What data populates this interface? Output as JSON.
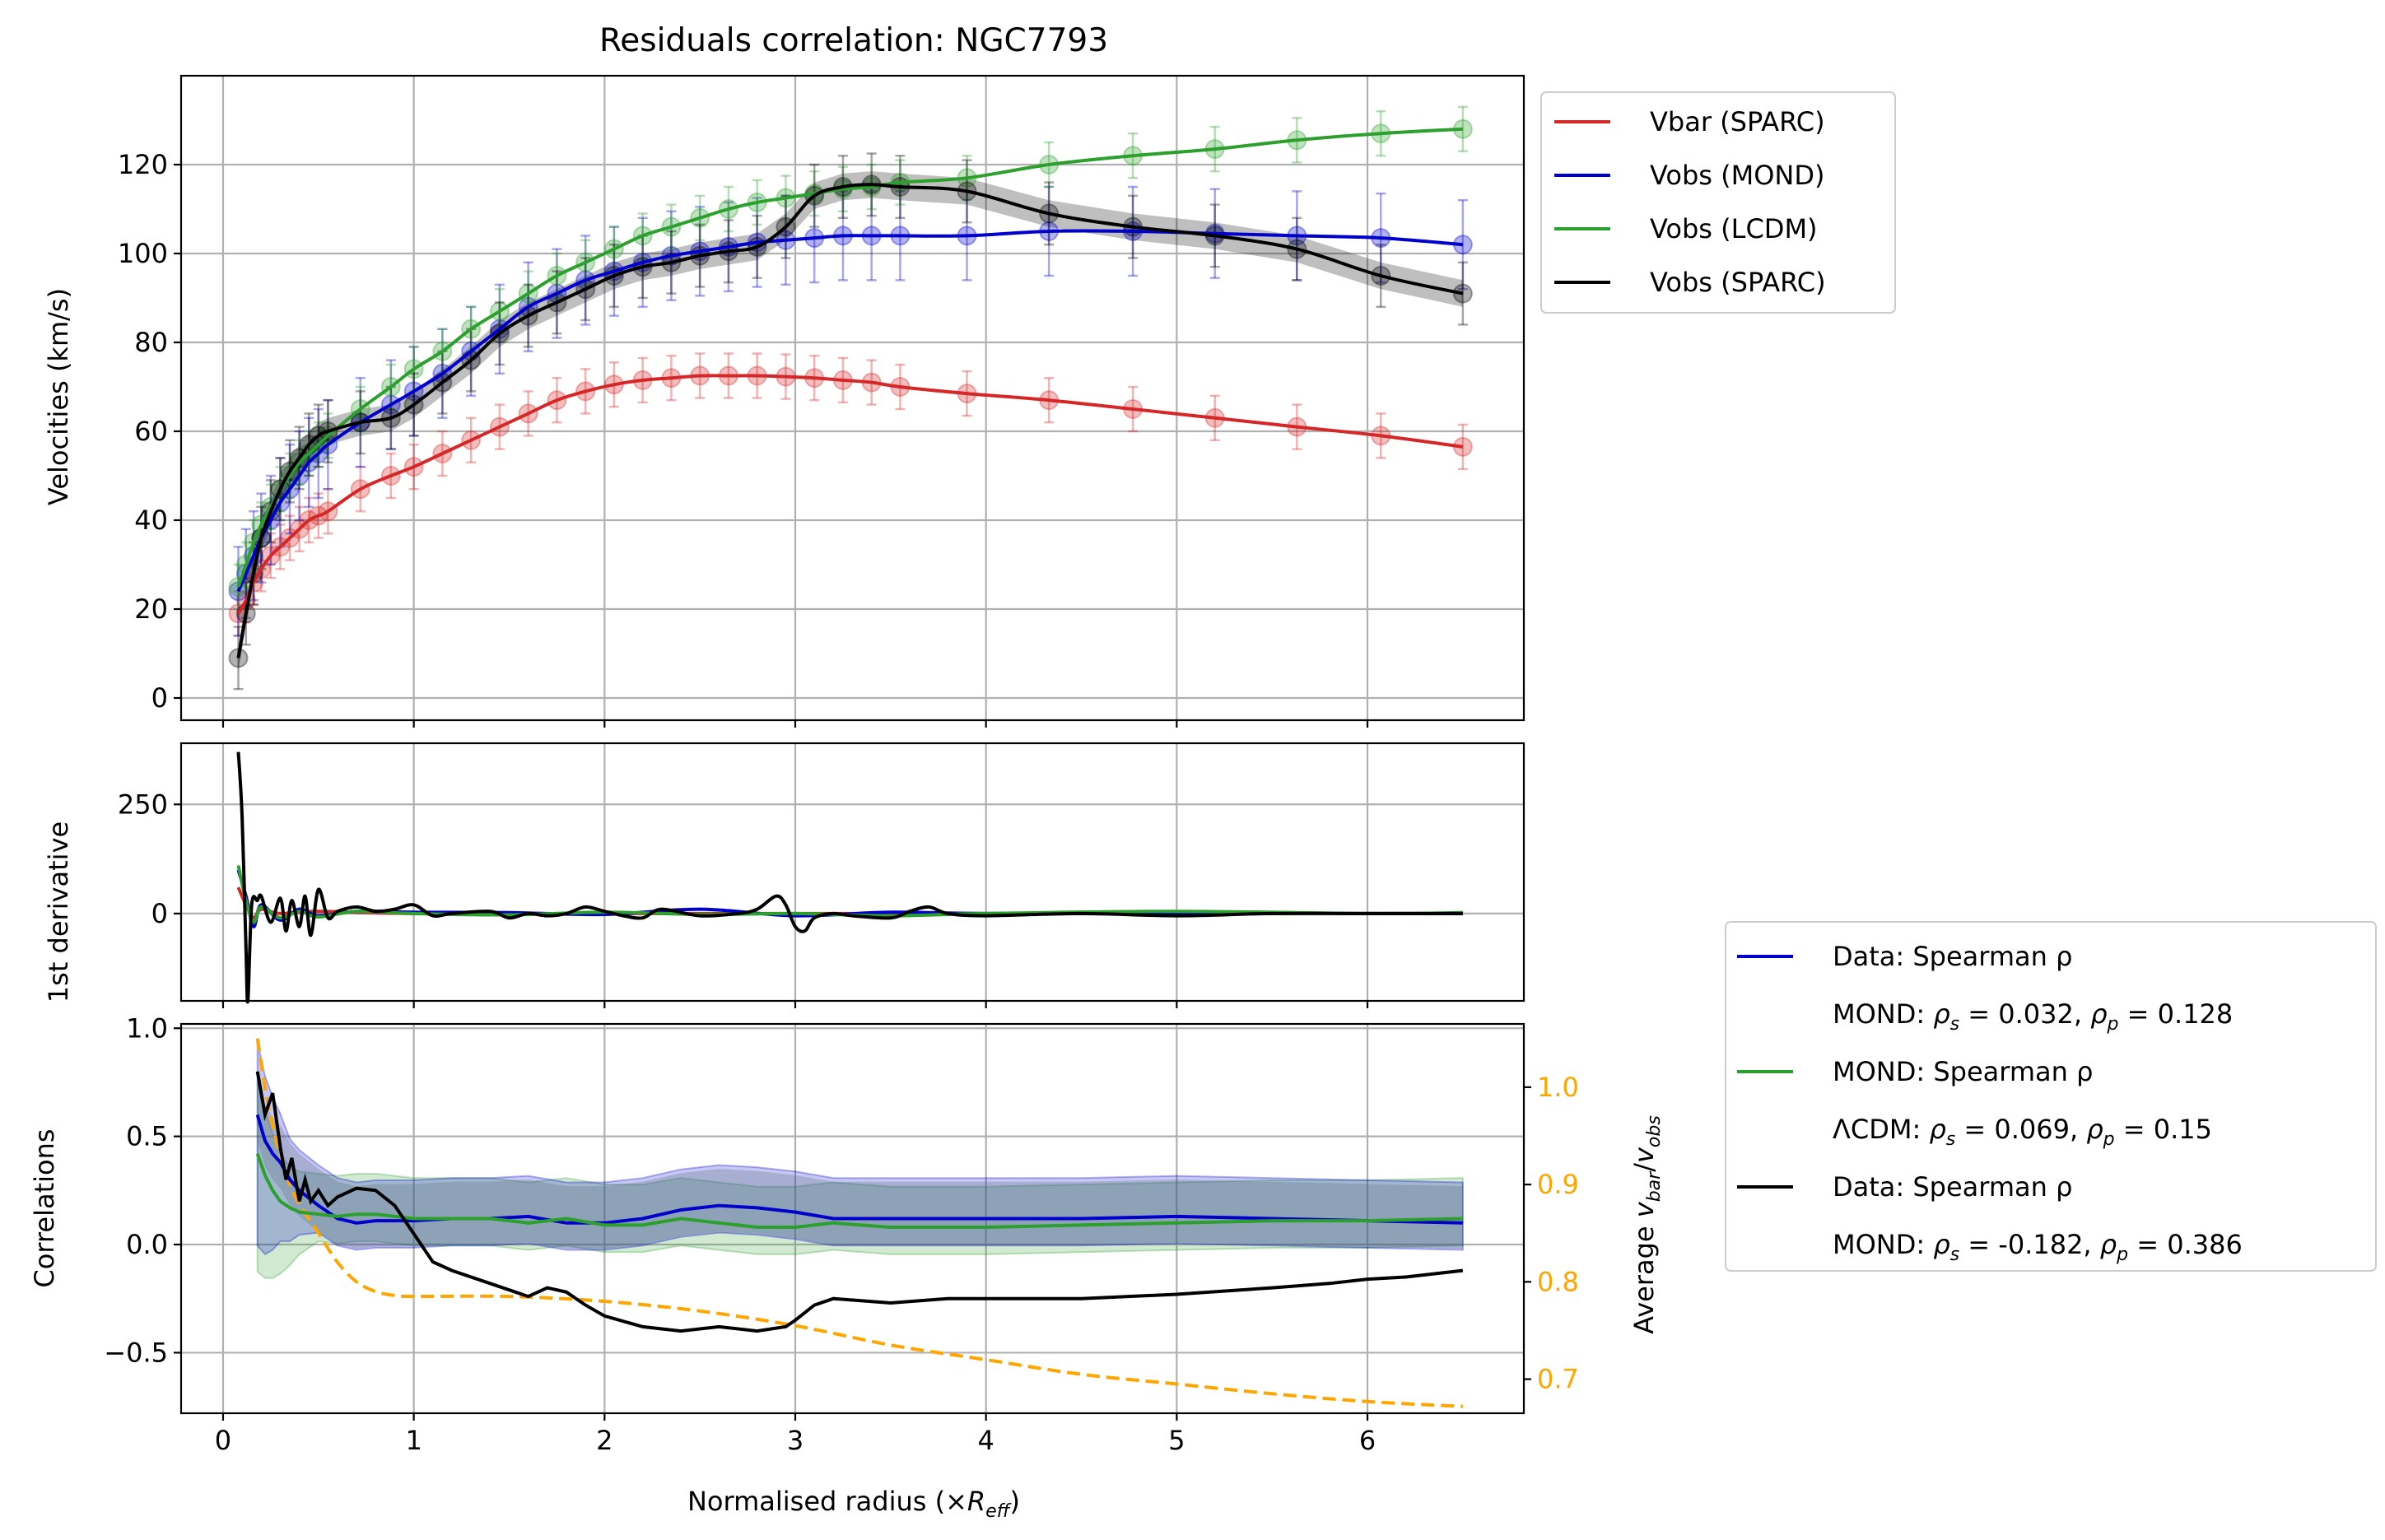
{
  "title": "Residuals correlation: NGC7793",
  "xlabel_main": "Normalised radius (×",
  "xlabel_sym": "R",
  "xlabel_sub": "eff",
  "xlabel_close": ")",
  "panels": {
    "velocity": {
      "ylabel": "Velocities (km/s)",
      "ylim": [
        -5,
        140
      ],
      "yticks": [
        0,
        20,
        40,
        60,
        80,
        100,
        120
      ],
      "legend": [
        "Vbar (SPARC)",
        "Vobs (MOND)",
        "Vobs (LCDM)",
        "Vobs (SPARC)"
      ]
    },
    "derivative": {
      "ylabel": "1st derivative",
      "ylim": [
        -200,
        390
      ],
      "yticks": [
        0,
        250
      ]
    },
    "correlation": {
      "ylabel": "Correlations",
      "ylim": [
        -0.78,
        1.02
      ],
      "yticks": [
        -0.5,
        0.0,
        0.5,
        1.0
      ],
      "ylabel_right_pre": "Average ",
      "ylabel_right_num": "v",
      "ylabel_right_num_sub": "bar",
      "ylabel_right_den": "v",
      "ylabel_right_den_sub": "obs",
      "ylim_right": [
        0.665,
        1.065
      ],
      "yticks_right": [
        0.7,
        0.8,
        0.9,
        1.0
      ]
    }
  },
  "xlim": [
    -0.22,
    6.82
  ],
  "xticks": [
    0,
    1,
    2,
    3,
    4,
    5,
    6
  ],
  "legend2": [
    {
      "label": "Data: Spearman ρ",
      "color": "#0000cc",
      "detail_prefix": "MOND: ",
      "rs": "0.032",
      "rp": "0.128"
    },
    {
      "label": "MOND: Spearman ρ",
      "color": "#2ca02c",
      "detail_prefix": "ΛCDM: ",
      "rs": "0.069",
      "rp": "0.15"
    },
    {
      "label": "Data: Spearman ρ",
      "color": "#000000",
      "detail_prefix": "MOND: ",
      "rs": "-0.182",
      "rp": "0.386"
    }
  ],
  "colors": {
    "vbar": "#d62728",
    "mond": "#0000cc",
    "lcdm": "#2ca02c",
    "sparc": "#000000",
    "ratio": "#ffa500"
  },
  "chart_data": [
    {
      "type": "line",
      "panel": "velocity",
      "series": [
        {
          "name": "Vbar (SPARC)",
          "x": [
            0.08,
            0.12,
            0.16,
            0.2,
            0.25,
            0.3,
            0.35,
            0.4,
            0.45,
            0.5,
            0.55,
            0.72,
            0.88,
            1.0,
            1.15,
            1.3,
            1.45,
            1.6,
            1.75,
            1.9,
            2.05,
            2.2,
            2.35,
            2.5,
            2.65,
            2.8,
            2.95,
            3.1,
            3.25,
            3.4,
            3.55,
            3.9,
            4.33,
            4.77,
            5.2,
            5.63,
            6.07,
            6.5
          ],
          "y": [
            19,
            22,
            26,
            29,
            32,
            34,
            36,
            38,
            40,
            41,
            42,
            47,
            50,
            52,
            55,
            58,
            61,
            64,
            67,
            69,
            70.5,
            71.5,
            72,
            72.5,
            72.5,
            72.5,
            72.3,
            72,
            71.5,
            71,
            70,
            68.5,
            67,
            65,
            63,
            61,
            59,
            56.5
          ],
          "err": 5
        },
        {
          "name": "Vobs (MOND)",
          "x": [
            0.08,
            0.12,
            0.16,
            0.2,
            0.25,
            0.3,
            0.35,
            0.4,
            0.45,
            0.5,
            0.55,
            0.72,
            0.88,
            1.0,
            1.15,
            1.3,
            1.45,
            1.6,
            1.75,
            1.9,
            2.05,
            2.2,
            2.35,
            2.5,
            2.65,
            2.8,
            2.95,
            3.1,
            3.25,
            3.4,
            3.55,
            3.9,
            4.33,
            4.77,
            5.2,
            5.63,
            6.07,
            6.5
          ],
          "y": [
            24,
            28,
            32,
            36,
            40,
            44,
            47,
            50,
            53,
            55,
            57,
            62,
            66,
            69,
            73,
            78,
            83,
            88,
            91,
            94,
            96,
            98,
            99.5,
            100.5,
            101.5,
            102.5,
            103,
            103.5,
            104,
            104,
            104,
            104,
            105,
            105,
            104.5,
            104,
            103.5,
            102
          ],
          "err": 10
        },
        {
          "name": "Vobs (LCDM)",
          "x": [
            0.08,
            0.12,
            0.16,
            0.2,
            0.25,
            0.3,
            0.35,
            0.4,
            0.45,
            0.5,
            0.55,
            0.72,
            0.88,
            1.0,
            1.15,
            1.3,
            1.45,
            1.6,
            1.75,
            1.9,
            2.05,
            2.2,
            2.35,
            2.5,
            2.65,
            2.8,
            2.95,
            3.1,
            3.25,
            3.4,
            3.55,
            3.9,
            4.33,
            4.77,
            5.2,
            5.63,
            6.07,
            6.5
          ],
          "y": [
            25,
            30,
            35,
            39,
            43,
            47,
            50,
            53,
            55,
            57,
            59,
            65,
            70,
            74,
            78,
            83,
            87,
            91,
            95,
            98,
            101,
            104,
            106,
            108,
            110,
            111.5,
            112.5,
            113.5,
            114.5,
            115,
            116,
            117,
            120,
            122,
            123.5,
            125.5,
            127,
            128
          ],
          "err": 5
        },
        {
          "name": "Vobs (SPARC)",
          "x": [
            0.08,
            0.12,
            0.16,
            0.2,
            0.25,
            0.3,
            0.35,
            0.4,
            0.45,
            0.5,
            0.55,
            0.72,
            0.88,
            1.0,
            1.15,
            1.3,
            1.45,
            1.6,
            1.75,
            1.9,
            2.05,
            2.2,
            2.35,
            2.5,
            2.65,
            2.8,
            2.95,
            3.1,
            3.25,
            3.4,
            3.55,
            3.9,
            4.33,
            4.77,
            5.2,
            5.63,
            6.07,
            6.5
          ],
          "y": [
            9,
            19,
            28,
            36,
            42,
            47,
            51,
            54,
            57,
            59,
            60,
            62,
            63,
            66,
            71,
            76,
            82,
            86,
            89,
            92,
            95,
            97,
            98,
            99.5,
            100.5,
            101.5,
            106,
            113,
            115,
            115.5,
            115,
            114,
            109,
            106,
            104,
            101,
            95,
            91
          ],
          "err": 7
        }
      ]
    },
    {
      "type": "line",
      "panel": "derivative",
      "series": [
        {
          "name": "Vobs (SPARC)",
          "x": [
            0.08,
            0.1,
            0.12,
            0.13,
            0.15,
            0.18,
            0.2,
            0.25,
            0.3,
            0.33,
            0.36,
            0.4,
            0.43,
            0.46,
            0.5,
            0.55,
            0.6,
            0.7,
            0.8,
            0.9,
            1.0,
            1.1,
            1.2,
            1.4,
            1.5,
            1.6,
            1.7,
            1.8,
            1.9,
            2.0,
            2.1,
            2.2,
            2.3,
            2.5,
            2.7,
            2.8,
            2.9,
            2.95,
            3.0,
            3.05,
            3.1,
            3.2,
            3.3,
            3.5,
            3.6,
            3.7,
            3.8,
            4.0,
            4.5,
            5.0,
            5.5,
            6.0,
            6.5
          ],
          "y": [
            370,
            220,
            -80,
            -200,
            20,
            30,
            40,
            -20,
            35,
            -40,
            30,
            -30,
            40,
            -50,
            55,
            -10,
            5,
            15,
            5,
            10,
            20,
            -5,
            0,
            5,
            -10,
            0,
            -5,
            0,
            15,
            5,
            -5,
            -10,
            10,
            -5,
            0,
            10,
            40,
            20,
            -30,
            -40,
            -10,
            0,
            -5,
            -10,
            5,
            15,
            0,
            -5,
            0,
            -5,
            0,
            0,
            0
          ]
        },
        {
          "name": "Vobs (MOND)",
          "x": [
            0.08,
            0.12,
            0.16,
            0.2,
            0.3,
            0.4,
            0.5,
            0.7,
            1.0,
            1.5,
            2.0,
            2.5,
            3.0,
            3.5,
            4.0,
            5.0,
            6.0,
            6.5
          ],
          "y": [
            100,
            40,
            -30,
            20,
            -15,
            10,
            -5,
            5,
            3,
            2,
            -2,
            10,
            -5,
            3,
            0,
            2,
            0,
            0
          ]
        },
        {
          "name": "Vobs (LCDM)",
          "x": [
            0.08,
            0.12,
            0.16,
            0.2,
            0.3,
            0.4,
            0.5,
            0.7,
            1.0,
            1.5,
            2.0,
            2.5,
            3.0,
            3.5,
            4.0,
            5.0,
            6.0,
            6.5
          ],
          "y": [
            110,
            30,
            -20,
            15,
            -10,
            5,
            -8,
            5,
            0,
            -3,
            3,
            -2,
            0,
            -5,
            0,
            5,
            0,
            2
          ]
        },
        {
          "name": "Vbar (SPARC)",
          "x": [
            0.08,
            0.12,
            0.16,
            0.2,
            0.3,
            0.5,
            1.0,
            2.0,
            3.0,
            4.0,
            5.0,
            6.5
          ],
          "y": [
            60,
            20,
            -10,
            10,
            0,
            5,
            0,
            0,
            0,
            0,
            0,
            0
          ]
        }
      ]
    },
    {
      "type": "line",
      "panel": "correlation",
      "series": [
        {
          "name": "Data: Spearman ρ",
          "x": [
            0.18,
            0.22,
            0.26,
            0.3,
            0.35,
            0.4,
            0.5,
            0.6,
            0.7,
            0.8,
            1.0,
            1.2,
            1.4,
            1.6,
            1.8,
            2.0,
            2.2,
            2.4,
            2.6,
            2.8,
            3.0,
            3.2,
            3.5,
            4.0,
            4.5,
            5.0,
            5.5,
            6.0,
            6.5
          ],
          "y": [
            0.6,
            0.48,
            0.42,
            0.38,
            0.3,
            0.25,
            0.18,
            0.12,
            0.1,
            0.11,
            0.11,
            0.12,
            0.12,
            0.13,
            0.1,
            0.1,
            0.12,
            0.16,
            0.18,
            0.17,
            0.15,
            0.12,
            0.12,
            0.12,
            0.12,
            0.13,
            0.12,
            0.11,
            0.1
          ],
          "band": [
            0.25,
            0.45
          ]
        },
        {
          "name": "MOND: Spearman ρ",
          "x": [
            0.18,
            0.22,
            0.26,
            0.3,
            0.35,
            0.4,
            0.5,
            0.6,
            0.7,
            0.8,
            1.0,
            1.2,
            1.4,
            1.6,
            1.8,
            2.0,
            2.2,
            2.4,
            2.6,
            2.8,
            3.0,
            3.2,
            3.5,
            4.0,
            4.5,
            5.0,
            5.5,
            6.0,
            6.5
          ],
          "y": [
            0.42,
            0.32,
            0.25,
            0.2,
            0.17,
            0.15,
            0.14,
            0.13,
            0.14,
            0.14,
            0.12,
            0.12,
            0.12,
            0.1,
            0.12,
            0.09,
            0.09,
            0.12,
            0.1,
            0.08,
            0.08,
            0.1,
            0.08,
            0.08,
            0.09,
            0.1,
            0.11,
            0.11,
            0.12
          ],
          "band": [
            0.25,
            0.45
          ]
        },
        {
          "name": "Data: Spearman ρ",
          "x": [
            0.18,
            0.22,
            0.26,
            0.3,
            0.33,
            0.36,
            0.4,
            0.43,
            0.46,
            0.5,
            0.55,
            0.6,
            0.7,
            0.8,
            0.9,
            1.0,
            1.1,
            1.2,
            1.4,
            1.6,
            1.7,
            1.8,
            1.9,
            2.0,
            2.2,
            2.4,
            2.6,
            2.8,
            2.95,
            3.0,
            3.1,
            3.2,
            3.5,
            3.8,
            4.0,
            4.5,
            5.0,
            5.5,
            5.8,
            6.0,
            6.2,
            6.5
          ],
          "y": [
            0.8,
            0.6,
            0.7,
            0.45,
            0.3,
            0.4,
            0.2,
            0.3,
            0.2,
            0.25,
            0.18,
            0.22,
            0.26,
            0.25,
            0.18,
            0.05,
            -0.08,
            -0.12,
            -0.18,
            -0.24,
            -0.2,
            -0.22,
            -0.28,
            -0.33,
            -0.38,
            -0.4,
            -0.38,
            -0.4,
            -0.38,
            -0.35,
            -0.28,
            -0.25,
            -0.27,
            -0.25,
            -0.25,
            -0.25,
            -0.23,
            -0.2,
            -0.18,
            -0.16,
            -0.15,
            -0.12
          ]
        }
      ]
    },
    {
      "type": "line",
      "panel": "correlation-right",
      "series": [
        {
          "name": "Average v_bar/v_obs",
          "x": [
            0.18,
            0.22,
            0.26,
            0.3,
            0.35,
            0.4,
            0.5,
            0.6,
            0.7,
            0.8,
            0.9,
            1.0,
            1.5,
            2.0,
            2.5,
            3.0,
            3.5,
            4.0,
            4.5,
            5.0,
            5.5,
            6.0,
            6.5
          ],
          "y": [
            1.05,
            1.0,
            0.96,
            0.93,
            0.9,
            0.88,
            0.85,
            0.82,
            0.8,
            0.79,
            0.786,
            0.785,
            0.785,
            0.78,
            0.77,
            0.755,
            0.735,
            0.72,
            0.705,
            0.695,
            0.685,
            0.677,
            0.672
          ]
        }
      ]
    }
  ]
}
